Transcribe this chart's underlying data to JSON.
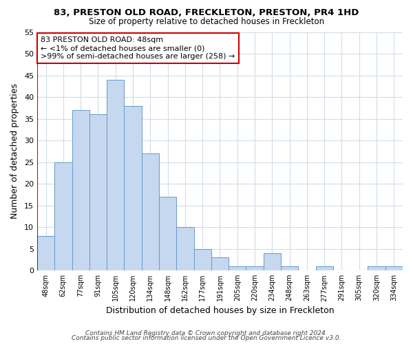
{
  "title1": "83, PRESTON OLD ROAD, FRECKLETON, PRESTON, PR4 1HD",
  "title2": "Size of property relative to detached houses in Freckleton",
  "xlabel": "Distribution of detached houses by size in Freckleton",
  "ylabel": "Number of detached properties",
  "categories": [
    "48sqm",
    "62sqm",
    "77sqm",
    "91sqm",
    "105sqm",
    "120sqm",
    "134sqm",
    "148sqm",
    "162sqm",
    "177sqm",
    "191sqm",
    "205sqm",
    "220sqm",
    "234sqm",
    "248sqm",
    "263sqm",
    "277sqm",
    "291sqm",
    "305sqm",
    "320sqm",
    "334sqm"
  ],
  "values": [
    8,
    25,
    37,
    36,
    44,
    38,
    27,
    17,
    10,
    5,
    3,
    1,
    1,
    4,
    1,
    0,
    1,
    0,
    0,
    1,
    1
  ],
  "bar_color": "#c5d8ef",
  "bar_edge_color": "#6699cc",
  "highlight_color": "#cc0000",
  "ylim": [
    0,
    55
  ],
  "yticks": [
    0,
    5,
    10,
    15,
    20,
    25,
    30,
    35,
    40,
    45,
    50,
    55
  ],
  "annotation_line1": "83 PRESTON OLD ROAD: 48sqm",
  "annotation_line2": "← <1% of detached houses are smaller (0)",
  "annotation_line3": ">99% of semi-detached houses are larger (258) →",
  "footer1": "Contains HM Land Registry data © Crown copyright and database right 2024.",
  "footer2": "Contains public sector information licensed under the Open Government Licence v3.0.",
  "background_color": "#ffffff",
  "grid_color": "#d0dce8"
}
